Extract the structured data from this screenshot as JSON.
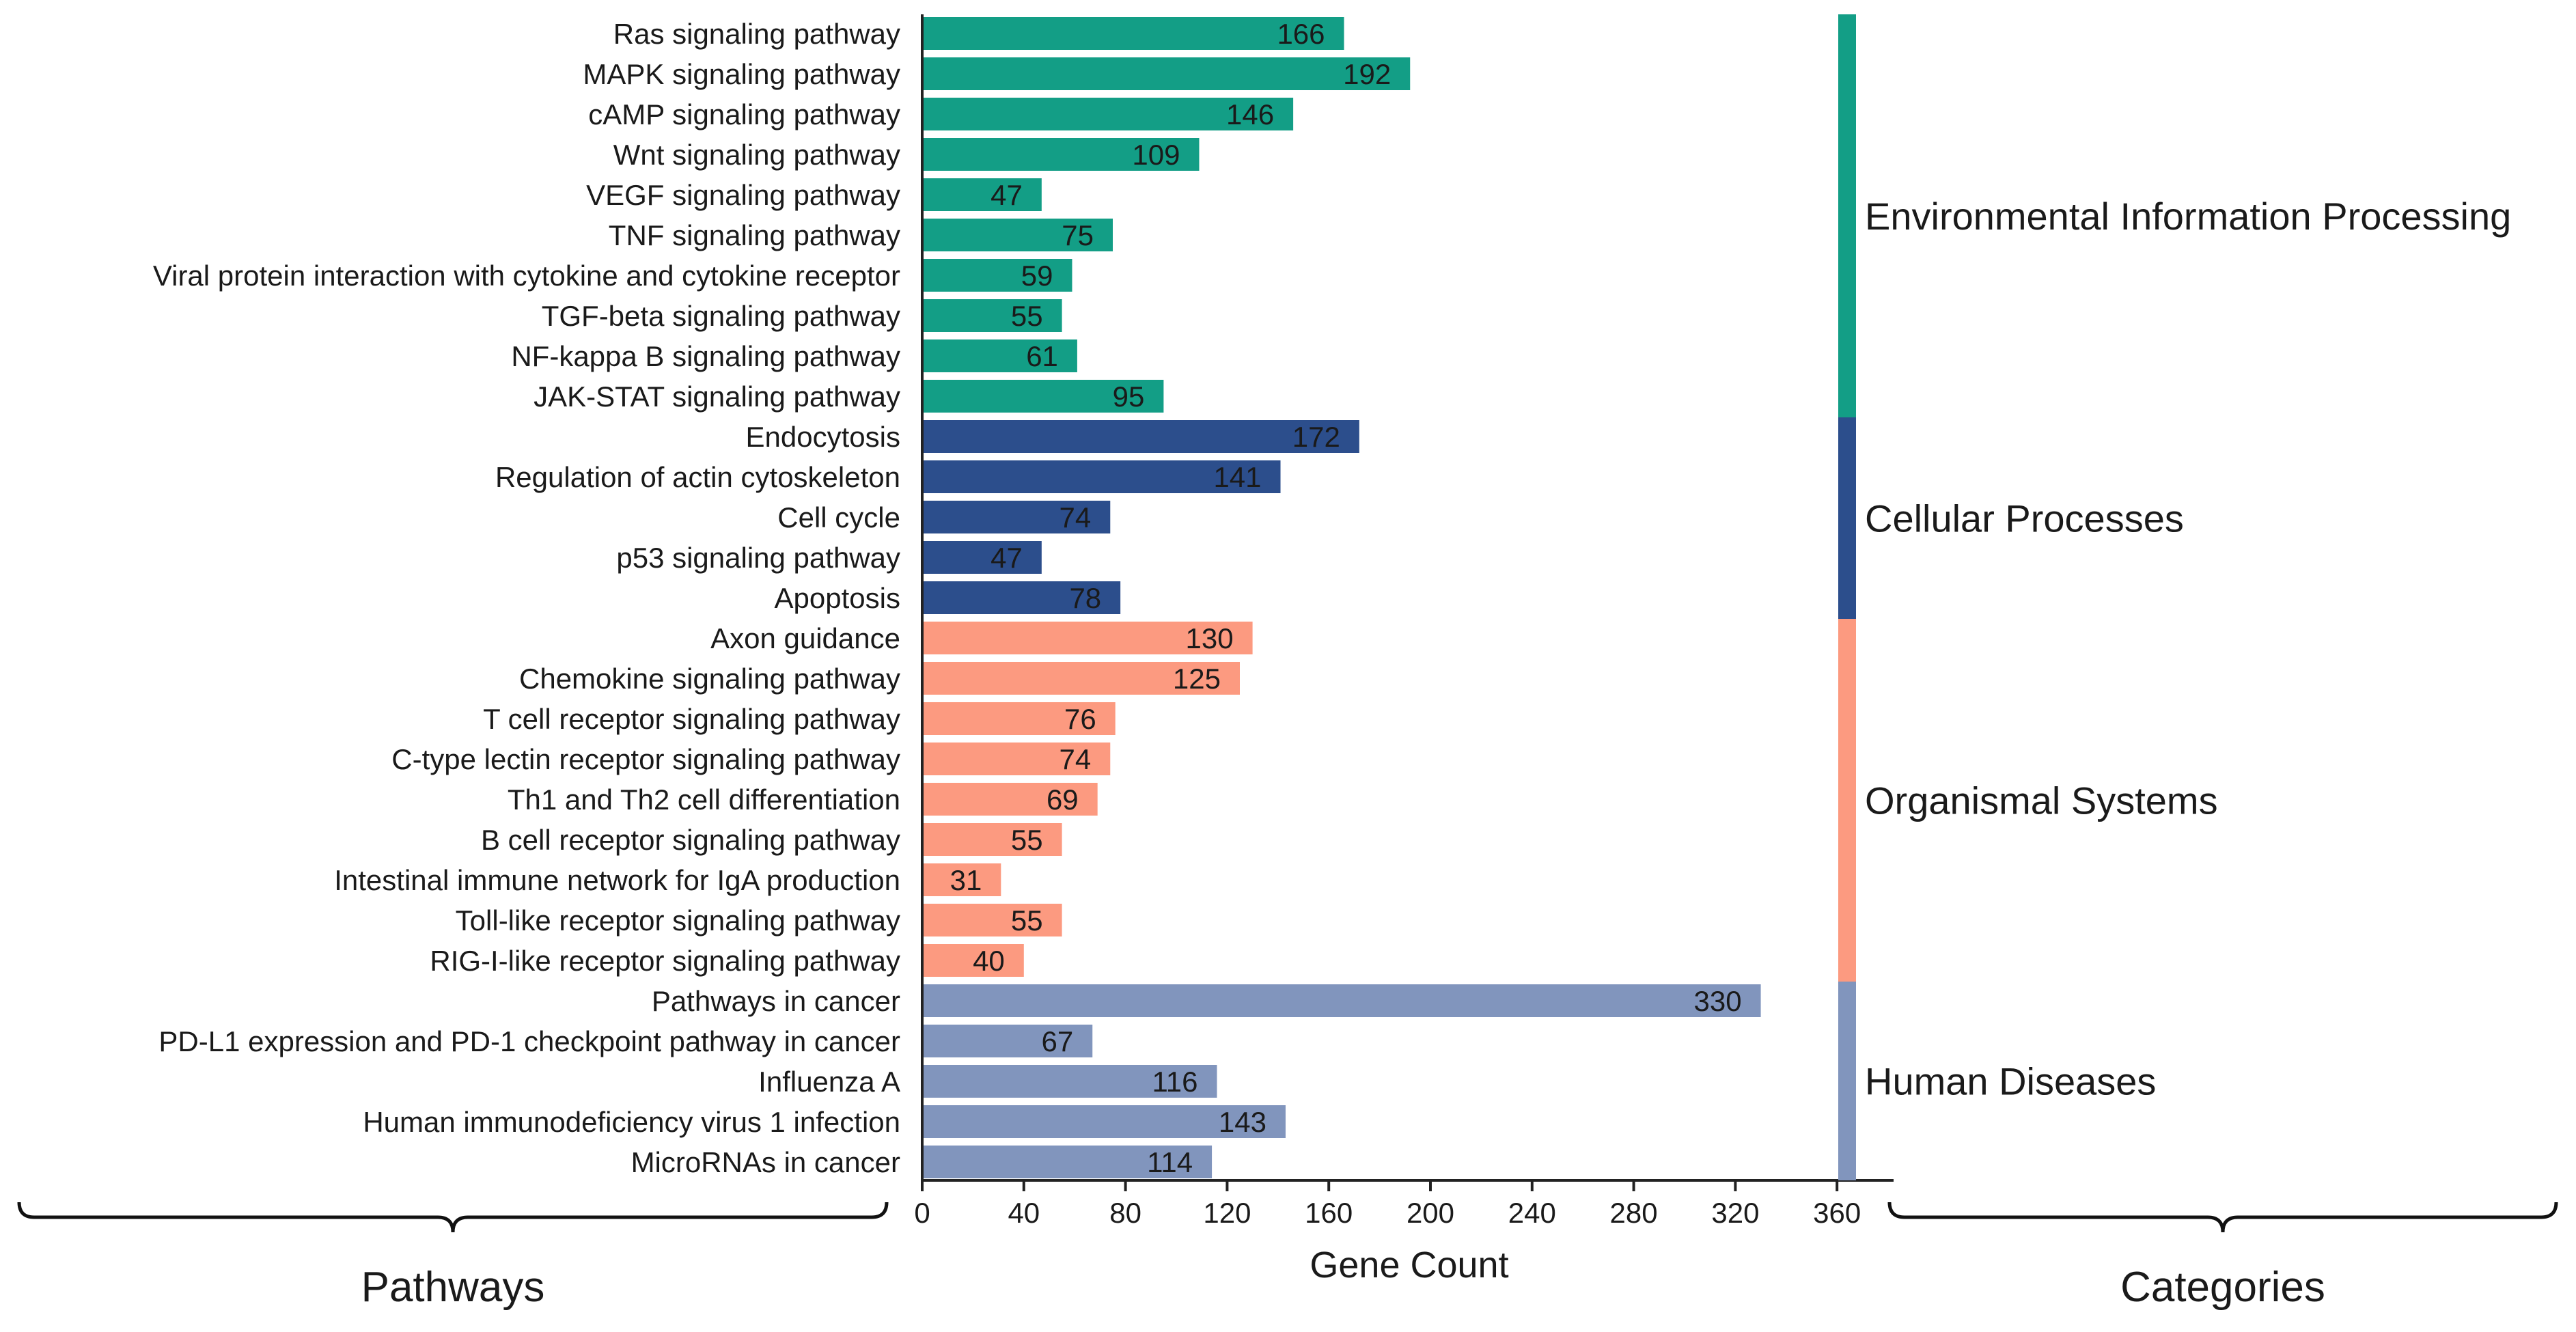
{
  "chart_data": {
    "type": "bar",
    "orientation": "horizontal",
    "xlabel": "Gene Count",
    "xlim": [
      0,
      370
    ],
    "xticks": [
      0,
      40,
      80,
      120,
      160,
      200,
      240,
      280,
      320,
      360
    ],
    "grid": false,
    "left_brace_title": "Pathways",
    "right_brace_title": "Categories",
    "categories": [
      {
        "name": "Environmental Information Processing",
        "color": "#139e86"
      },
      {
        "name": "Cellular Processes",
        "color": "#2c4e8c"
      },
      {
        "name": "Organismal Systems",
        "color": "#fc9a80"
      },
      {
        "name": "Human Diseases",
        "color": "#8195bd"
      }
    ],
    "bars": [
      {
        "pathway": "Ras signaling pathway",
        "value": 166,
        "category": 0
      },
      {
        "pathway": "MAPK signaling pathway",
        "value": 192,
        "category": 0
      },
      {
        "pathway": "cAMP signaling pathway",
        "value": 146,
        "category": 0
      },
      {
        "pathway": "Wnt signaling pathway",
        "value": 109,
        "category": 0
      },
      {
        "pathway": "VEGF signaling pathway",
        "value": 47,
        "category": 0
      },
      {
        "pathway": "TNF signaling pathway",
        "value": 75,
        "category": 0
      },
      {
        "pathway": "Viral protein interaction with cytokine and cytokine receptor",
        "value": 59,
        "category": 0
      },
      {
        "pathway": "TGF-beta signaling pathway",
        "value": 55,
        "category": 0
      },
      {
        "pathway": "NF-kappa B signaling pathway",
        "value": 61,
        "category": 0
      },
      {
        "pathway": "JAK-STAT signaling pathway",
        "value": 95,
        "category": 0
      },
      {
        "pathway": "Endocytosis",
        "value": 172,
        "category": 1
      },
      {
        "pathway": "Regulation of actin cytoskeleton",
        "value": 141,
        "category": 1
      },
      {
        "pathway": "Cell cycle",
        "value": 74,
        "category": 1
      },
      {
        "pathway": "p53 signaling pathway",
        "value": 47,
        "category": 1
      },
      {
        "pathway": "Apoptosis",
        "value": 78,
        "category": 1
      },
      {
        "pathway": "Axon guidance",
        "value": 130,
        "category": 2
      },
      {
        "pathway": "Chemokine signaling pathway",
        "value": 125,
        "category": 2
      },
      {
        "pathway": "T cell receptor signaling pathway",
        "value": 76,
        "category": 2
      },
      {
        "pathway": "C-type lectin receptor signaling pathway",
        "value": 74,
        "category": 2
      },
      {
        "pathway": "Th1 and Th2 cell differentiation",
        "value": 69,
        "category": 2
      },
      {
        "pathway": "B cell receptor signaling pathway",
        "value": 55,
        "category": 2
      },
      {
        "pathway": "Intestinal immune network for IgA production",
        "value": 31,
        "category": 2
      },
      {
        "pathway": "Toll-like receptor signaling pathway",
        "value": 55,
        "category": 2
      },
      {
        "pathway": "RIG-I-like receptor signaling pathway",
        "value": 40,
        "category": 2
      },
      {
        "pathway": "Pathways in cancer",
        "value": 330,
        "category": 3
      },
      {
        "pathway": "PD-L1 expression and PD-1 checkpoint pathway in cancer",
        "value": 67,
        "category": 3
      },
      {
        "pathway": "Influenza A",
        "value": 116,
        "category": 3
      },
      {
        "pathway": "Human immunodeficiency virus 1 infection",
        "value": 143,
        "category": 3
      },
      {
        "pathway": "MicroRNAs in cancer",
        "value": 114,
        "category": 3
      }
    ]
  }
}
